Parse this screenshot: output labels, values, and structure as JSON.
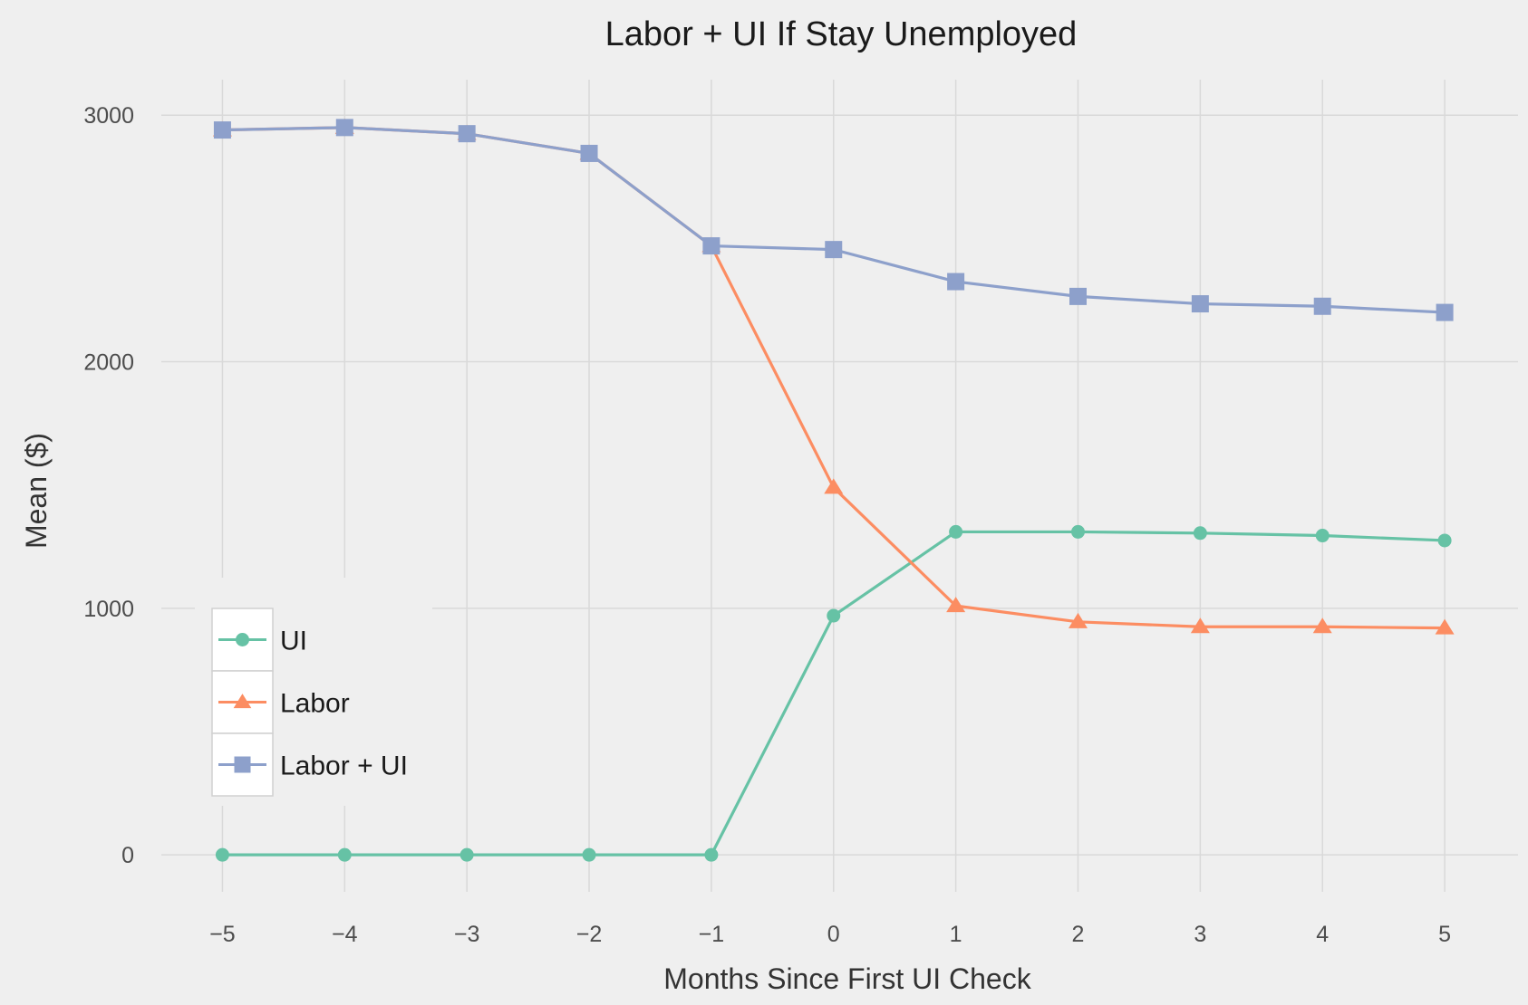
{
  "chart_data": {
    "type": "line",
    "title": "Labor + UI If Stay Unemployed",
    "xlabel": "Months Since First UI Check",
    "ylabel": "Mean ($)",
    "x": [
      -5,
      -4,
      -3,
      -2,
      -1,
      0,
      1,
      2,
      3,
      4,
      5
    ],
    "x_tick_labels": [
      "−5",
      "−4",
      "−3",
      "−2",
      "−1",
      "0",
      "1",
      "2",
      "3",
      "4",
      "5"
    ],
    "y_ticks": [
      0,
      1000,
      2000,
      3000
    ],
    "y_tick_labels": [
      "0",
      "1000",
      "2000",
      "3000"
    ],
    "xlim": [
      -5.5,
      5.6
    ],
    "ylim": [
      -150,
      3100
    ],
    "grid": true,
    "legend_position": "left",
    "series": [
      {
        "name": "UI",
        "color": "#66c2a5",
        "marker": "circle",
        "values": [
          0,
          0,
          0,
          0,
          0,
          970,
          1310,
          1310,
          1305,
          1295,
          1275
        ]
      },
      {
        "name": "Labor",
        "color": "#fc8d62",
        "marker": "triangle",
        "values": [
          2940,
          2950,
          2925,
          2845,
          2470,
          1490,
          1010,
          945,
          925,
          925,
          920
        ]
      },
      {
        "name": "Labor + UI",
        "color": "#8da0cb",
        "marker": "square",
        "values": [
          2940,
          2950,
          2925,
          2845,
          2470,
          2455,
          2325,
          2265,
          2235,
          2225,
          2200
        ]
      }
    ]
  }
}
